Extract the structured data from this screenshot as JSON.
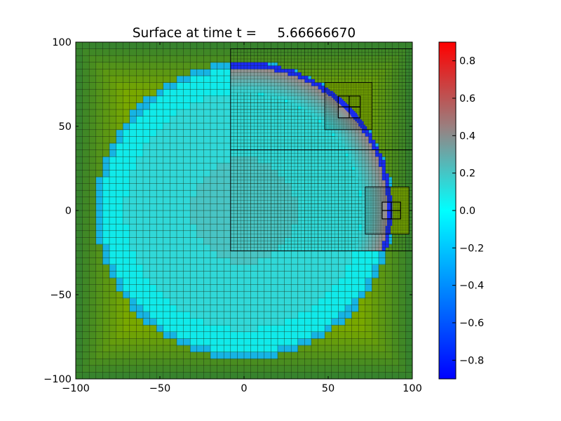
{
  "chart_data": {
    "type": "heatmap",
    "title": "Surface at time t =     5.66666670",
    "xlabel": "",
    "ylabel": "",
    "xlim": [
      -100,
      100
    ],
    "ylim": [
      -100,
      100
    ],
    "x_ticks": [
      "−100",
      "−50",
      "0",
      "50",
      "100"
    ],
    "y_ticks": [
      "100",
      "50",
      "0",
      "−50",
      "−100"
    ],
    "x_tick_values": [
      -100,
      -50,
      0,
      50,
      100
    ],
    "y_tick_values": [
      100,
      50,
      0,
      -50,
      -100
    ],
    "colorbar": {
      "range": [
        -0.9,
        0.9
      ],
      "ticks": [
        0.8,
        0.6,
        0.4,
        0.2,
        0.0,
        -0.2,
        -0.4,
        -0.6,
        -0.8
      ],
      "tick_labels": [
        "0.8",
        "0.6",
        "0.4",
        "0.2",
        "0.0",
        "−0.2",
        "−0.4",
        "−0.6",
        "−0.8"
      ],
      "colors": [
        "#0000ff",
        "#00ffff",
        "#ff0000"
      ]
    },
    "surface": {
      "disc_center": [
        0,
        0
      ],
      "disc_radius": 88,
      "disc_value": 0.05,
      "land_color": "#78a800",
      "coarse_cell": 4
    },
    "refined_patches": [
      {
        "xlim": [
          -8,
          100
        ],
        "ylim": [
          36,
          96
        ],
        "level": 2
      },
      {
        "xlim": [
          -8,
          100
        ],
        "ylim": [
          -24,
          36
        ],
        "level": 2
      },
      {
        "xlim": [
          48,
          76
        ],
        "ylim": [
          48,
          76
        ],
        "level": 3
      },
      {
        "xlim": [
          72,
          98
        ],
        "ylim": [
          -14,
          14
        ],
        "level": 3
      },
      {
        "xlim": [
          56,
          69
        ],
        "ylim": [
          55,
          68
        ],
        "level": 4
      },
      {
        "xlim": [
          82,
          93
        ],
        "ylim": [
          -5,
          5
        ],
        "level": 4
      }
    ]
  }
}
